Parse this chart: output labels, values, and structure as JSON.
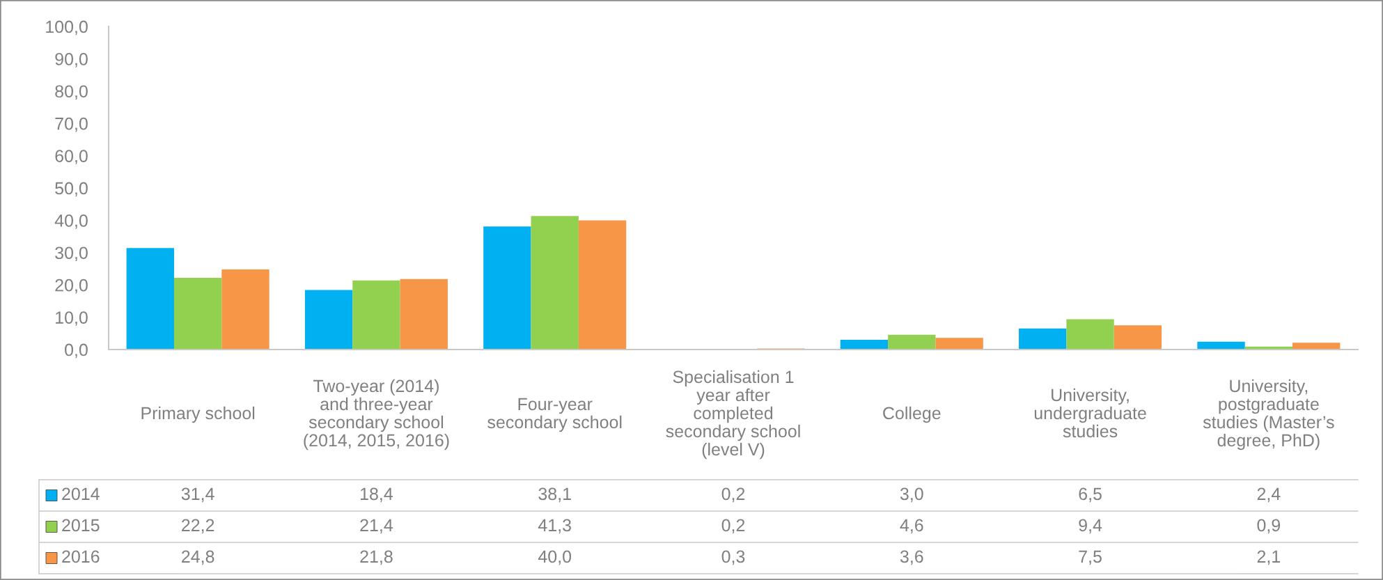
{
  "chart_data": {
    "type": "bar",
    "categories": [
      "Primary school",
      "Two-year (2014) and three-year secondary school (2014, 2015, 2016)",
      "Four-year secondary school",
      "Specialisation 1 year after completed secondary school (level V)",
      "College",
      "University, undergraduate studies",
      "University, postgraduate studies (Master’s degree, PhD)"
    ],
    "series": [
      {
        "name": "2014",
        "color": "#00b0f0",
        "values": [
          31.4,
          18.4,
          38.1,
          0.2,
          3.0,
          6.5,
          2.4
        ],
        "value_labels": [
          "31,4",
          "18,4",
          "38,1",
          "0,2",
          "3,0",
          "6,5",
          "2,4"
        ]
      },
      {
        "name": "2015",
        "color": "#92d050",
        "values": [
          22.2,
          21.4,
          41.3,
          0.2,
          4.6,
          9.4,
          0.9
        ],
        "value_labels": [
          "22,2",
          "21,4",
          "41,3",
          "0,2",
          "4,6",
          "9,4",
          "0,9"
        ]
      },
      {
        "name": "2016",
        "color": "#f79646",
        "values": [
          24.8,
          21.8,
          40.0,
          0.3,
          3.6,
          7.5,
          2.1
        ],
        "value_labels": [
          "24,8",
          "21,8",
          "40,0",
          "0,3",
          "3,6",
          "7,5",
          "2,1"
        ]
      }
    ],
    "ylim": [
      0,
      100
    ],
    "yticks": [
      {
        "value": 0,
        "label": "0,0"
      },
      {
        "value": 10,
        "label": "10,0"
      },
      {
        "value": 20,
        "label": "20,0"
      },
      {
        "value": 30,
        "label": "30,0"
      },
      {
        "value": 40,
        "label": "40,0"
      },
      {
        "value": 50,
        "label": "50,0"
      },
      {
        "value": 60,
        "label": "60,0"
      },
      {
        "value": 70,
        "label": "70,0"
      },
      {
        "value": 80,
        "label": "80,0"
      },
      {
        "value": 90,
        "label": "90,0"
      },
      {
        "value": 100,
        "label": "100,0"
      }
    ],
    "grid": false,
    "legend": "bottom left"
  }
}
